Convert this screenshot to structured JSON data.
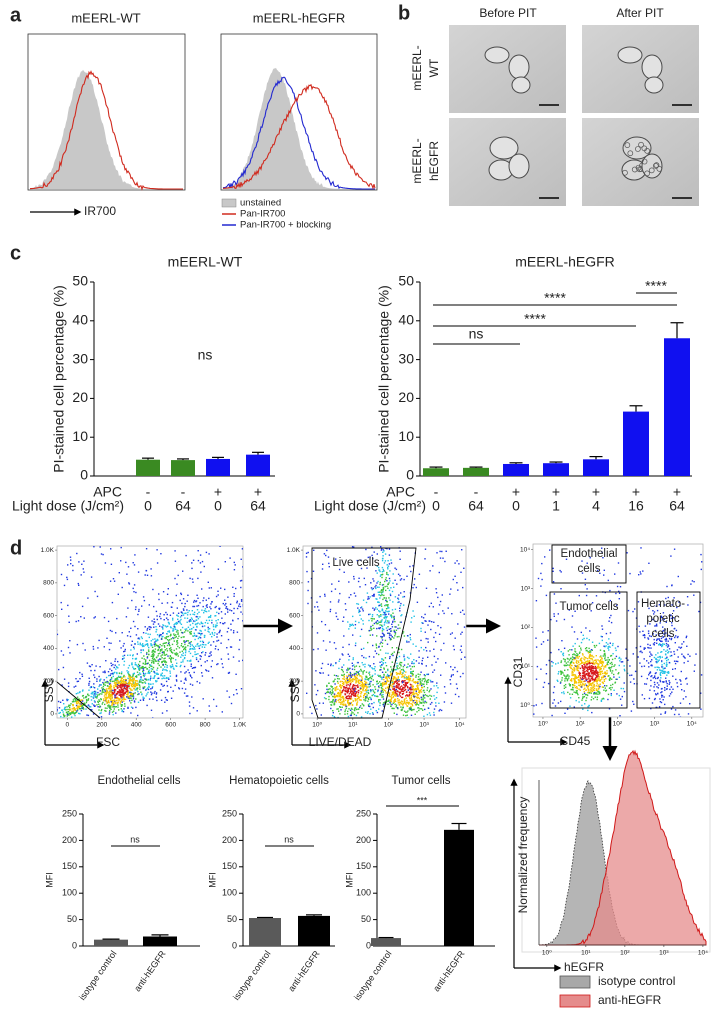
{
  "panel_labels": [
    "a",
    "b",
    "c",
    "d"
  ],
  "panel_a": {
    "plots": [
      {
        "title": "mEERL-WT"
      },
      {
        "title": "mEERL-hEGFR"
      }
    ],
    "x_label": "IR700",
    "legend": [
      {
        "name": "unstained",
        "color": "#c8c8c8"
      },
      {
        "name": "Pan-IR700",
        "color": "#d02a1e"
      },
      {
        "name": "Pan-IR700 + blocking",
        "color": "#2228d0"
      }
    ]
  },
  "panel_b": {
    "columns": [
      "Before PIT",
      "After PIT"
    ],
    "rows": [
      [
        "mEERL-",
        "WT"
      ],
      [
        "mEERL-",
        "hEGFR"
      ]
    ]
  },
  "chart_data": [
    {
      "type": "bar",
      "title": "mEERL-WT",
      "y_label": "PI-stained cell percentage (%)",
      "row_labels": [
        "APC",
        "Light dose (J/cm²)"
      ],
      "apc": [
        "-",
        "-",
        "+",
        "+"
      ],
      "categories": [
        "0",
        "64",
        "0",
        "64"
      ],
      "values": [
        4.2,
        4.1,
        4.4,
        5.5
      ],
      "errors": [
        0.4,
        0.3,
        0.4,
        0.6
      ],
      "colors": [
        "#3a8a22",
        "#3a8a22",
        "#1010f0",
        "#1010f0"
      ],
      "ylim": [
        0,
        50
      ],
      "yticks": [
        0,
        10,
        20,
        30,
        40,
        50
      ],
      "annotations": [
        "ns"
      ]
    },
    {
      "type": "bar",
      "title": "mEERL-hEGFR",
      "y_label": "PI-stained cell percentage (%)",
      "row_labels": [
        "APC",
        "Light dose (J/cm²)"
      ],
      "apc": [
        "-",
        "-",
        "+",
        "+",
        "+",
        "+",
        "+"
      ],
      "categories": [
        "0",
        "64",
        "0",
        "1",
        "4",
        "16",
        "64"
      ],
      "values": [
        2.0,
        2.1,
        3.1,
        3.3,
        4.3,
        16.6,
        35.5
      ],
      "errors": [
        0.3,
        0.2,
        0.3,
        0.3,
        0.7,
        1.5,
        4.0
      ],
      "colors": [
        "#3a8a22",
        "#3a8a22",
        "#1010f0",
        "#1010f0",
        "#1010f0",
        "#1010f0",
        "#1010f0"
      ],
      "ylim": [
        0,
        50
      ],
      "yticks": [
        0,
        10,
        20,
        30,
        40,
        50
      ],
      "annotations": [
        "****",
        "****",
        "****",
        "ns"
      ]
    },
    {
      "type": "density",
      "x_label": "FSC",
      "y_label": "SSC",
      "log_x": false,
      "log_y": false,
      "xlim": [
        -60,
        1020
      ],
      "ylim": [
        -25,
        1025
      ],
      "xticks": [
        0,
        200,
        400,
        600,
        800,
        {
          "value": 1000,
          "label": "1.0K"
        }
      ],
      "yticks": [
        0,
        200,
        400,
        600,
        800,
        {
          "value": 1000,
          "label": "1.0K"
        }
      ],
      "gates": []
    },
    {
      "type": "density",
      "x_label": "LIVE/DEAD",
      "y_label": "SSC",
      "log_x": true,
      "log_y": false,
      "xlim": [
        0.4,
        15000
      ],
      "ylim": [
        -25,
        1025
      ],
      "xticks": [
        {
          "value": 1,
          "label": "10⁰"
        },
        {
          "value": 10,
          "label": "10¹"
        },
        {
          "value": 100,
          "label": "10²"
        },
        {
          "value": 1000,
          "label": "10³"
        },
        {
          "value": 10000,
          "label": "10⁴"
        }
      ],
      "yticks": [
        0,
        200,
        400,
        600,
        800,
        {
          "value": 1000,
          "label": "1.0K"
        }
      ],
      "gates": [
        [
          "Live cells"
        ]
      ]
    },
    {
      "type": "density",
      "x_label": "CD45",
      "y_label": "CD31",
      "log_x": true,
      "log_y": true,
      "xlim": [
        0.54,
        20000
      ],
      "ylim": [
        0.5,
        14000
      ],
      "xticks": [
        {
          "value": 1,
          "label": "10⁰"
        },
        {
          "value": 10,
          "label": "10¹"
        },
        {
          "value": 100,
          "label": "10²"
        },
        {
          "value": 1000,
          "label": "10³"
        },
        {
          "value": 10000,
          "label": "10⁴"
        }
      ],
      "yticks": [
        {
          "value": 1,
          "label": "10⁰"
        },
        {
          "value": 10,
          "label": "10¹"
        },
        {
          "value": 100,
          "label": "10²"
        },
        {
          "value": 1000,
          "label": "10³"
        },
        {
          "value": 10000,
          "label": "10⁴"
        }
      ],
      "gates": [
        [
          "Endothelial",
          "cells"
        ],
        [
          "Tumor cells"
        ],
        [
          "Hemato-",
          "poietic",
          "cells"
        ]
      ]
    },
    {
      "type": "bar",
      "title": "Endothelial cells",
      "y_label": "MFI",
      "categories": [
        "isotype control",
        "anti-hEGFR"
      ],
      "values": [
        12,
        18
      ],
      "errors": [
        1,
        3
      ],
      "colors": [
        "#5a5a5a",
        "#000000"
      ],
      "ylim": [
        0,
        250
      ],
      "yticks": [
        0,
        50,
        100,
        150,
        200,
        250
      ],
      "annotations": [
        "ns"
      ]
    },
    {
      "type": "bar",
      "title": "Hematopoietic cells",
      "y_label": "MFI",
      "categories": [
        "isotype control",
        "anti-hEGFR"
      ],
      "values": [
        53,
        57
      ],
      "errors": [
        1,
        2
      ],
      "colors": [
        "#5a5a5a",
        "#000000"
      ],
      "ylim": [
        0,
        250
      ],
      "yticks": [
        0,
        50,
        100,
        150,
        200,
        250
      ],
      "annotations": [
        "ns"
      ]
    },
    {
      "type": "bar",
      "title": "Tumor cells",
      "y_label": "MFI",
      "categories": [
        "isotype control",
        "anti-hEGFR"
      ],
      "values": [
        15,
        220
      ],
      "errors": [
        1,
        12
      ],
      "colors": [
        "#5a5a5a",
        "#000000"
      ],
      "ylim": [
        0,
        250
      ],
      "yticks": [
        0,
        50,
        100,
        150,
        200,
        250
      ],
      "annotations": [
        "***"
      ]
    },
    {
      "type": "histogram-curves",
      "x_label": "hEGFR",
      "y_label": "Normalized frequency",
      "log_x": true,
      "xlim": [
        0.63,
        12000
      ],
      "xticks": [
        {
          "value": 1,
          "label": "10⁰"
        },
        {
          "value": 10,
          "label": "10¹"
        },
        {
          "value": 100,
          "label": "10²"
        },
        {
          "value": 1000,
          "label": "10³"
        },
        {
          "value": 10000,
          "label": "10⁴"
        }
      ],
      "series": [
        {
          "name": "isotype control",
          "color": "#a8a8a8"
        },
        {
          "name": "anti-hEGFR",
          "color": "#e58c8c"
        }
      ]
    }
  ]
}
